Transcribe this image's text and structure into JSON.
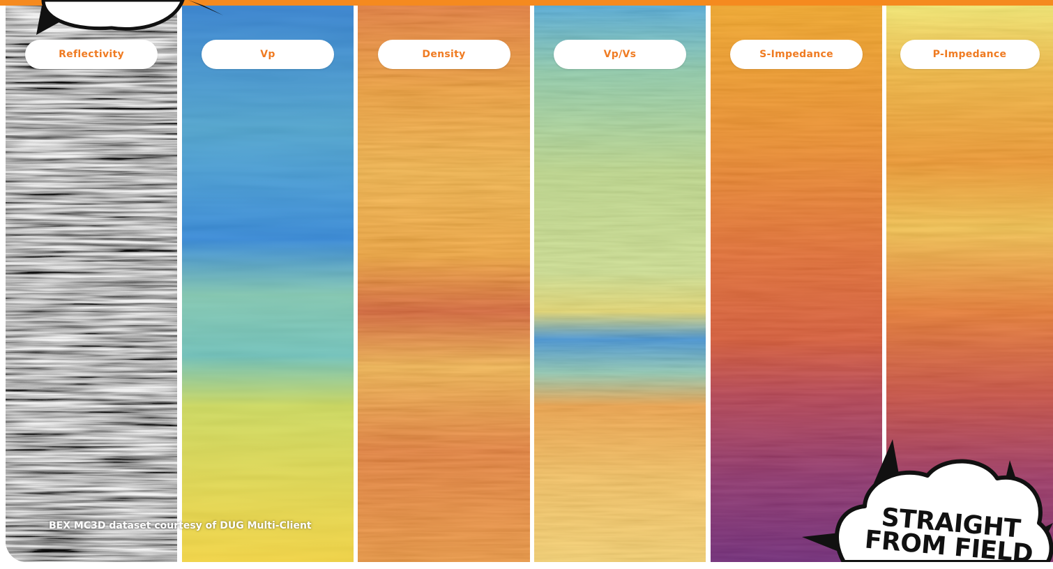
{
  "panels": [
    {
      "label": "Reflectivity",
      "colormap": "grayscale",
      "colors": [
        "#2a2a2a",
        "#9a9a9a",
        "#f2f2f2"
      ]
    },
    {
      "label": "Vp",
      "colormap": "blue-yellow",
      "colors": [
        "#2d7fd0",
        "#5fb8c0",
        "#f2dc3a"
      ]
    },
    {
      "label": "Density",
      "colormap": "orange",
      "colors": [
        "#e26a1e",
        "#f59a25",
        "#f8c64a"
      ]
    },
    {
      "label": "Vp/Vs",
      "colormap": "jet",
      "colors": [
        "#2f8fd6",
        "#a8d48a",
        "#e8d860",
        "#f5a030"
      ]
    },
    {
      "label": "S-Impedance",
      "colormap": "inferno",
      "colors": [
        "#f4a61c",
        "#d9542e",
        "#7a1f70"
      ]
    },
    {
      "label": "P-Impedance",
      "colormap": "inferno",
      "colors": [
        "#f6e85a",
        "#f19324",
        "#c64a3c",
        "#8a2a6a"
      ]
    }
  ],
  "credit": "BEX MC3D dataset courtesy of DUG Multi-Client",
  "badge": {
    "line1": "STRAIGHT",
    "line2": "FROM FIELD"
  },
  "accent": "#f58a1f",
  "pill_text_color": "#ef7b22"
}
